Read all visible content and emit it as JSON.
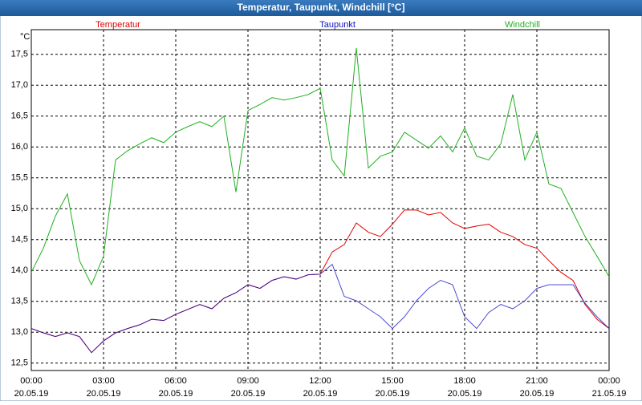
{
  "chart_data": {
    "type": "line",
    "title": "Temperatur, Taupunkt, Windchill [°C]",
    "y_unit": "°C",
    "x": [
      0,
      0.5,
      1,
      1.5,
      2,
      2.5,
      3,
      3.5,
      4,
      4.5,
      5,
      5.5,
      6,
      6.5,
      7,
      7.5,
      8,
      8.5,
      9,
      9.5,
      10,
      10.5,
      11,
      11.5,
      12,
      12.5,
      13,
      13.5,
      14,
      14.5,
      15,
      15.5,
      16,
      16.5,
      17,
      17.5,
      18,
      18.5,
      19,
      19.5,
      20,
      20.5,
      21,
      21.5,
      22,
      22.5,
      23,
      23.5,
      24
    ],
    "xlim": [
      0,
      24
    ],
    "xticks": [
      {
        "value": 0,
        "label": "00:00",
        "date": "20.05.19"
      },
      {
        "value": 3,
        "label": "03:00",
        "date": "20.05.19"
      },
      {
        "value": 6,
        "label": "06:00",
        "date": "20.05.19"
      },
      {
        "value": 9,
        "label": "09:00",
        "date": "20.05.19"
      },
      {
        "value": 12,
        "label": "12:00",
        "date": "20.05.19"
      },
      {
        "value": 15,
        "label": "15:00",
        "date": "20.05.19"
      },
      {
        "value": 18,
        "label": "18:00",
        "date": "20.05.19"
      },
      {
        "value": 21,
        "label": "21:00",
        "date": "20.05.19"
      },
      {
        "value": 24,
        "label": "00:00",
        "date": "21.05.19"
      }
    ],
    "ylim": [
      12.38,
      17.9
    ],
    "yticks": [
      {
        "value": 12.5,
        "label": "12,5"
      },
      {
        "value": 13,
        "label": "13,0"
      },
      {
        "value": 13.5,
        "label": "13,5"
      },
      {
        "value": 14,
        "label": "14,0"
      },
      {
        "value": 14.5,
        "label": "14,5"
      },
      {
        "value": 15,
        "label": "15,0"
      },
      {
        "value": 15.5,
        "label": "15,5"
      },
      {
        "value": 16,
        "label": "16,0"
      },
      {
        "value": 16.5,
        "label": "16,5"
      },
      {
        "value": 17,
        "label": "17,0"
      },
      {
        "value": 17.5,
        "label": "17,5"
      }
    ],
    "grid": true,
    "series": [
      {
        "name": "Temperatur",
        "color": "#e00000",
        "values": [
          13.06,
          12.99,
          12.93,
          12.99,
          12.93,
          12.67,
          12.86,
          12.99,
          13.06,
          13.12,
          13.21,
          13.19,
          13.29,
          13.37,
          13.45,
          13.38,
          13.55,
          13.64,
          13.77,
          13.71,
          13.84,
          13.9,
          13.86,
          13.93,
          13.94,
          14.3,
          14.42,
          14.77,
          14.62,
          14.55,
          14.75,
          14.98,
          14.98,
          14.9,
          14.94,
          14.77,
          14.68,
          14.72,
          14.75,
          14.62,
          14.55,
          14.42,
          14.36,
          14.16,
          13.97,
          13.84,
          13.45,
          13.21,
          13.06
        ]
      },
      {
        "name": "Taupunkt",
        "color": "#1010c0",
        "values": [
          13.06,
          12.99,
          12.93,
          12.99,
          12.93,
          12.67,
          12.86,
          12.99,
          13.06,
          13.12,
          13.21,
          13.19,
          13.29,
          13.37,
          13.45,
          13.38,
          13.55,
          13.64,
          13.77,
          13.71,
          13.84,
          13.9,
          13.86,
          13.93,
          13.94,
          14.1,
          13.58,
          13.51,
          13.38,
          13.25,
          13.06,
          13.25,
          13.51,
          13.71,
          13.84,
          13.77,
          13.25,
          13.06,
          13.32,
          13.45,
          13.38,
          13.51,
          13.71,
          13.77,
          13.77,
          13.77,
          13.47,
          13.25,
          13.06
        ]
      },
      {
        "name": "Windchill",
        "color": "#20b020",
        "values": [
          13.97,
          14.36,
          14.88,
          15.24,
          14.16,
          13.77,
          14.23,
          15.79,
          15.94,
          16.05,
          16.15,
          16.07,
          16.24,
          16.33,
          16.41,
          16.33,
          16.5,
          15.27,
          16.59,
          16.69,
          16.8,
          16.76,
          16.8,
          16.85,
          16.95,
          15.79,
          15.53,
          17.6,
          15.66,
          15.85,
          15.92,
          16.24,
          16.11,
          15.98,
          16.18,
          15.92,
          16.31,
          15.85,
          15.79,
          16.05,
          16.85,
          15.79,
          16.24,
          15.4,
          15.33,
          14.94,
          14.55,
          14.23,
          13.9
        ]
      }
    ]
  }
}
